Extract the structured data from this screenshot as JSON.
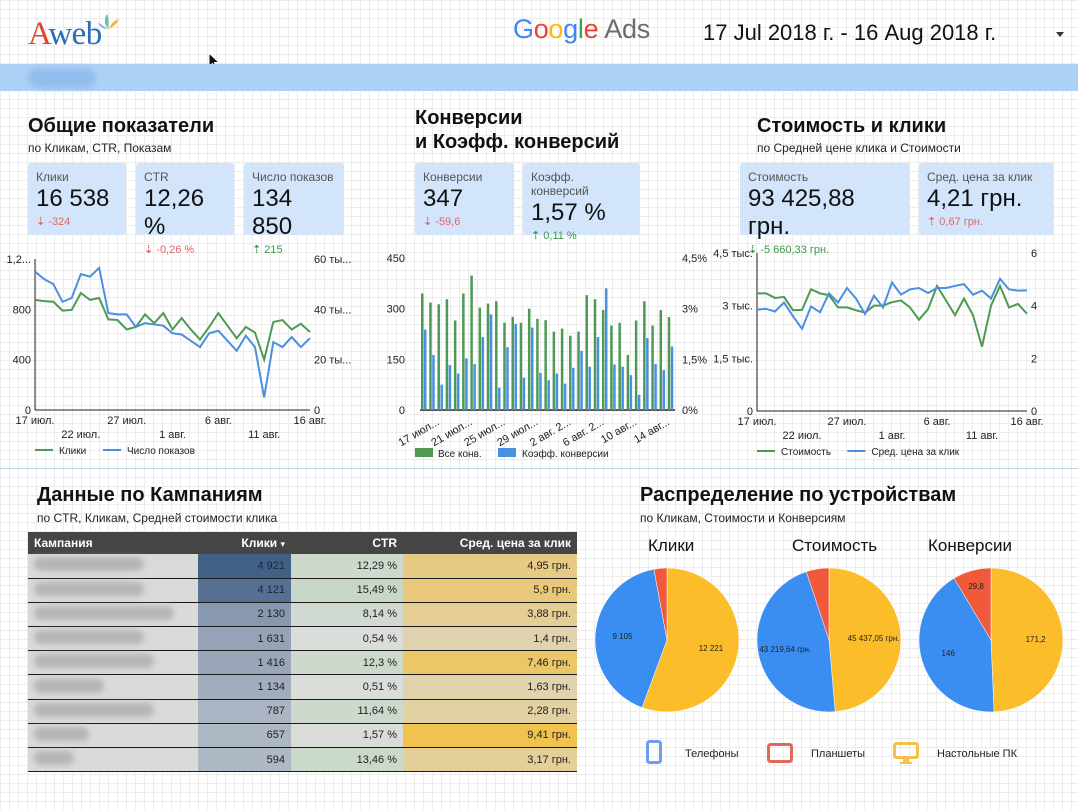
{
  "header": {
    "logo_a": "A",
    "logo_web": "web",
    "google_letters": [
      {
        "ch": "G",
        "color": "#4285f4"
      },
      {
        "ch": "o",
        "color": "#ea4335"
      },
      {
        "ch": "o",
        "color": "#fbbc05"
      },
      {
        "ch": "g",
        "color": "#4285f4"
      },
      {
        "ch": "l",
        "color": "#34a853"
      },
      {
        "ch": "e",
        "color": "#ea4335"
      }
    ],
    "ads_label": "Ads",
    "date_range": "17 Jul 2018 г. - 16 Aug 2018 г."
  },
  "overview": {
    "title": "Общие показатели",
    "subtitle": "по Кликам, CTR, Показам",
    "cards": [
      {
        "label": "Клики",
        "value": "16 538",
        "delta": "-324",
        "direction": "down",
        "tone": "bad"
      },
      {
        "label": "CTR",
        "value": "12,26 %",
        "delta": "-0,26 %",
        "direction": "down",
        "tone": "bad"
      },
      {
        "label": "Число показов",
        "value": "134 850",
        "delta": "215",
        "direction": "up",
        "tone": "good"
      }
    ]
  },
  "conversions": {
    "title_line1": "Конверсии",
    "title_line2": "и Коэфф. конверсий",
    "cards": [
      {
        "label": "Конверсии",
        "value": "347",
        "delta": "-59,6",
        "direction": "down",
        "tone": "bad"
      },
      {
        "label": "Коэфф. конверсий",
        "value": "1,57 %",
        "delta": "0,11 %",
        "direction": "up",
        "tone": "good"
      }
    ]
  },
  "cost": {
    "title": "Стоимость и клики",
    "subtitle": "по Средней цене клика и Стоимости",
    "cards": [
      {
        "label": "Стоимость",
        "value": "93 425,88 грн.",
        "delta": "-5 660,33 грн.",
        "direction": "down",
        "tone": "good"
      },
      {
        "label": "Сред. цена за клик",
        "value": "4,21 грн.",
        "delta": "0,67 грн.",
        "direction": "up",
        "tone": "bad"
      }
    ]
  },
  "campaigns": {
    "title": "Данные по Кампаниям",
    "subtitle": "по CTR, Кликам, Средней стоимости клика",
    "columns": [
      "Кампания",
      "Клики",
      "CTR",
      "Сред. цена за клик"
    ],
    "sort_indicator": "▾",
    "rows": [
      {
        "clicks": "4 921",
        "ctr": "12,29 %",
        "cpc": "4,95 грн."
      },
      {
        "clicks": "4 121",
        "ctr": "15,49 %",
        "cpc": "5,9 грн."
      },
      {
        "clicks": "2 130",
        "ctr": "8,14 %",
        "cpc": "3,88 грн."
      },
      {
        "clicks": "1 631",
        "ctr": "0,54 %",
        "cpc": "1,4 грн."
      },
      {
        "clicks": "1 416",
        "ctr": "12,3 %",
        "cpc": "7,46 грн."
      },
      {
        "clicks": "1 134",
        "ctr": "0,51 %",
        "cpc": "1,63 грн."
      },
      {
        "clicks": "787",
        "ctr": "11,64 %",
        "cpc": "2,28 грн."
      },
      {
        "clicks": "657",
        "ctr": "1,57 %",
        "cpc": "9,41 грн."
      },
      {
        "clicks": "594",
        "ctr": "13,46 %",
        "cpc": "3,17 грн."
      }
    ]
  },
  "devices": {
    "title": "Распределение по устройствам",
    "subtitle": "по Кликам, Стоимости и Конверсиям",
    "legend": [
      {
        "label": "Телефоны",
        "icon": "smartphone-icon",
        "color": "#4a8af4"
      },
      {
        "label": "Планшеты",
        "icon": "tablet-icon",
        "color": "#e4685a"
      },
      {
        "label": "Настольные ПК",
        "icon": "desktop-icon",
        "color": "#f4c04a"
      }
    ]
  },
  "colors": {
    "green": "#4e9a55",
    "blue": "#4a90e2",
    "pie_blue": "#3a8ef2",
    "pie_red": "#f05a3a",
    "pie_yellow": "#fbbd2a"
  },
  "chart_data": [
    {
      "id": "clicks-impressions",
      "type": "line",
      "x": [
        "17 июл.",
        "18",
        "19",
        "20",
        "21",
        "22 июл.",
        "23",
        "24",
        "25",
        "26",
        "27 июл.",
        "28",
        "29",
        "30",
        "31",
        "1 авг.",
        "2",
        "3",
        "4",
        "5",
        "6 авг.",
        "7",
        "8",
        "9",
        "10",
        "11 авг.",
        "12",
        "13",
        "14",
        "15",
        "16 авг."
      ],
      "x_ticks_row1": [
        "17 июл.",
        "27 июл.",
        "6 авг.",
        "16 авг."
      ],
      "x_ticks_row2": [
        "22 июл.",
        "1 авг.",
        "11 авг."
      ],
      "y_left_ticks": [
        "0",
        "400",
        "800",
        "1,2..."
      ],
      "y_right_ticks": [
        "0",
        "20 ты...",
        "40 ты...",
        "60 ты..."
      ],
      "y_left_range": [
        0,
        1200
      ],
      "y_right_range": [
        0,
        60000
      ],
      "series": [
        {
          "name": "Клики",
          "axis": "left",
          "values": [
            875,
            865,
            860,
            790,
            795,
            930,
            875,
            890,
            720,
            715,
            640,
            660,
            760,
            690,
            770,
            640,
            730,
            640,
            560,
            660,
            770,
            670,
            570,
            660,
            615,
            400,
            700,
            715,
            640,
            685,
            620
          ]
        },
        {
          "name": "Число показов",
          "axis": "right",
          "values": [
            55000,
            52000,
            50000,
            43000,
            44500,
            54000,
            53000,
            56500,
            38500,
            38000,
            38000,
            33000,
            34500,
            34000,
            33500,
            30500,
            30000,
            27500,
            25000,
            30500,
            31500,
            27500,
            23500,
            29500,
            25000,
            5000,
            27000,
            25000,
            29000,
            25000,
            28500
          ]
        }
      ],
      "legend_position": "bottom-left"
    },
    {
      "id": "conversions-rate",
      "type": "bar",
      "x_ticks": [
        "17 июл...",
        "21 июл...",
        "25 июл...",
        "29 июл...",
        "2 авг. 2...",
        "6 авг. 2...",
        "10 авг...",
        "14 авг..."
      ],
      "y_left_ticks": [
        "0",
        "150",
        "300",
        "450"
      ],
      "y_right_ticks": [
        "0%",
        "1,5%",
        "3%",
        "4,5%"
      ],
      "y_left_range": [
        0,
        450
      ],
      "y_right_range": [
        0,
        4.5
      ],
      "series": [
        {
          "name": "Все конв.",
          "axis": "left",
          "values": [
            345,
            318,
            313,
            328,
            265,
            345,
            398,
            303,
            315,
            322,
            258,
            276,
            258,
            300,
            270,
            266,
            232,
            241,
            220,
            232,
            340,
            328,
            296,
            250,
            258,
            163,
            265,
            322,
            250,
            296,
            275
          ]
        },
        {
          "name": "Коэфф. конверсии",
          "axis": "right",
          "values": [
            2.38,
            1.63,
            0.75,
            1.33,
            1.08,
            1.53,
            1.36,
            2.16,
            2.83,
            0.66,
            1.86,
            2.55,
            0.96,
            2.44,
            1.1,
            0.88,
            1.08,
            0.78,
            1.25,
            1.75,
            1.28,
            2.16,
            3.6,
            1.35,
            1.28,
            1.03,
            0.45,
            2.13,
            1.36,
            1.18,
            1.88
          ]
        }
      ],
      "legend_position": "bottom-left"
    },
    {
      "id": "cost-cpc",
      "type": "line",
      "x_ticks_row1": [
        "17 июл.",
        "27 июл.",
        "6 авг.",
        "16 авг."
      ],
      "x_ticks_row2": [
        "22 июл.",
        "1 авг.",
        "11 авг."
      ],
      "y_left_ticks": [
        "0",
        "1,5 тыс.",
        "3 тыс.",
        "4,5 тыс."
      ],
      "y_right_ticks": [
        "0",
        "2",
        "4",
        "6"
      ],
      "y_left_range": [
        0,
        4500
      ],
      "y_right_range": [
        0,
        6
      ],
      "series": [
        {
          "name": "Стоимость",
          "axis": "left",
          "values": [
            3350,
            3350,
            3220,
            3250,
            2870,
            2880,
            3470,
            3350,
            3300,
            2950,
            2950,
            2870,
            2800,
            3000,
            3000,
            3100,
            3150,
            2950,
            2600,
            2900,
            3560,
            3150,
            2730,
            3200,
            2730,
            1830,
            3000,
            3560,
            2950,
            3050,
            2770
          ]
        },
        {
          "name": "Сред. цена за клик",
          "axis": "right",
          "values": [
            3.85,
            3.88,
            3.78,
            4.12,
            3.6,
            3.12,
            3.97,
            3.75,
            4.47,
            4.12,
            4.67,
            4.27,
            3.68,
            4.38,
            3.93,
            4.88,
            4.42,
            4.62,
            4.67,
            4.48,
            4.67,
            4.67,
            4.75,
            4.82,
            4.42,
            4.57,
            4.27,
            5.02,
            4.62,
            4.57,
            4.58
          ]
        }
      ],
      "legend_position": "bottom-left"
    },
    {
      "id": "pie-clicks",
      "type": "pie",
      "title": "Клики",
      "slices": [
        {
          "name": "Настольные ПК",
          "value": 12221,
          "label": "12 221"
        },
        {
          "name": "Телефоны",
          "value": 9105,
          "label": "9 105"
        },
        {
          "name": "Планшеты",
          "value": 640,
          "label": ""
        }
      ]
    },
    {
      "id": "pie-cost",
      "type": "pie",
      "title": "Стоимость",
      "slices": [
        {
          "name": "Настольные ПК",
          "value": 45437.05,
          "label": "45 437,05 грн."
        },
        {
          "name": "Телефоны",
          "value": 43219.64,
          "label": "43 219,64 грн."
        },
        {
          "name": "Планшеты",
          "value": 4769.19,
          "label": ""
        }
      ]
    },
    {
      "id": "pie-conversions",
      "type": "pie",
      "title": "Конверсии",
      "slices": [
        {
          "name": "Настольные ПК",
          "value": 171.2,
          "label": "171,2"
        },
        {
          "name": "Телефоны",
          "value": 146,
          "label": "146"
        },
        {
          "name": "Планшеты",
          "value": 29.8,
          "label": "29,8"
        }
      ]
    }
  ]
}
